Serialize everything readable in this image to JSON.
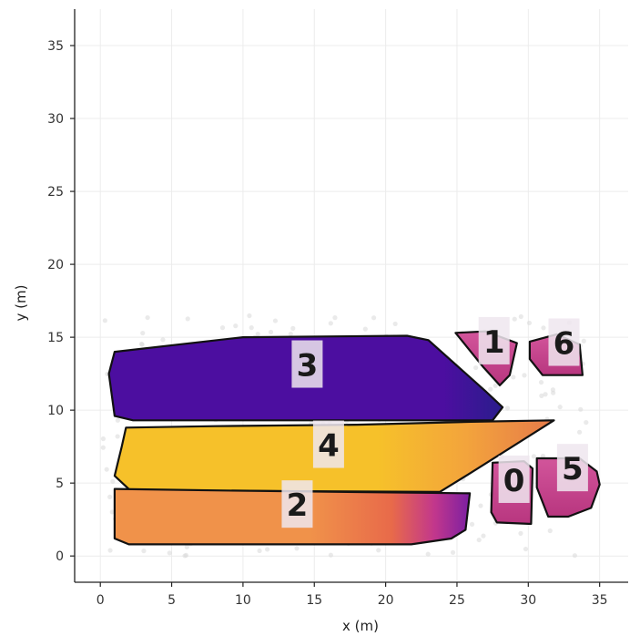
{
  "chart_data": {
    "type": "scatter",
    "title": "",
    "xlabel": "x (m)",
    "ylabel": "y (m)",
    "xlim": [
      -1.8,
      37
    ],
    "ylim": [
      -1.8,
      37.5
    ],
    "xticks": [
      0,
      5,
      10,
      15,
      20,
      25,
      30,
      35
    ],
    "yticks": [
      0,
      5,
      10,
      15,
      20,
      25,
      30,
      35
    ],
    "grid": true,
    "colors": {
      "region_3": "#4c0ea0",
      "region_4": "#f6c12a",
      "region_2": "#f0924a",
      "region_1": "#c94a93",
      "region_6": "#c94a93",
      "region_0": "#c94a93",
      "region_5": "#c94a93",
      "label_box": "#efe6ef",
      "outline": "#111111",
      "gradient_purple": "#7b1fa2",
      "gradient_magenta": "#c2378c",
      "gradient_orange": "#e86a4a"
    },
    "regions": [
      {
        "id": "3",
        "label_pos": [
          14.5,
          13.1
        ],
        "polygon": [
          [
            1,
            14
          ],
          [
            10,
            15
          ],
          [
            21.5,
            15.1
          ],
          [
            23,
            14.8
          ],
          [
            27,
            11.3
          ],
          [
            28.2,
            10.2
          ],
          [
            27.5,
            9.3
          ],
          [
            2.3,
            9.3
          ],
          [
            1,
            9.6
          ],
          [
            0.6,
            12.5
          ]
        ]
      },
      {
        "id": "4",
        "label_pos": [
          16,
          7.6
        ],
        "polygon": [
          [
            1.8,
            8.8
          ],
          [
            8,
            8.9
          ],
          [
            18,
            9
          ],
          [
            26,
            9.2
          ],
          [
            31.8,
            9.3
          ],
          [
            25.8,
            5.6
          ],
          [
            23.8,
            4.4
          ],
          [
            2.1,
            4.5
          ],
          [
            1,
            5.5
          ],
          [
            1.5,
            7.5
          ]
        ]
      },
      {
        "id": "2",
        "label_pos": [
          13.8,
          3.5
        ],
        "polygon": [
          [
            1,
            4.6
          ],
          [
            8,
            4.5
          ],
          [
            25.9,
            4.3
          ],
          [
            25.6,
            1.8
          ],
          [
            24.6,
            1.2
          ],
          [
            21.8,
            0.8
          ],
          [
            2,
            0.8
          ],
          [
            1,
            1.2
          ]
        ]
      },
      {
        "id": "1",
        "label_pos": [
          27.6,
          14.7
        ],
        "polygon": [
          [
            24.9,
            15.3
          ],
          [
            27,
            15.4
          ],
          [
            29.2,
            14.6
          ],
          [
            28.7,
            12.4
          ],
          [
            28,
            11.7
          ],
          [
            26.8,
            13
          ]
        ]
      },
      {
        "id": "6",
        "label_pos": [
          32.5,
          14.6
        ],
        "polygon": [
          [
            30.1,
            14.7
          ],
          [
            32,
            15.2
          ],
          [
            33.6,
            14.5
          ],
          [
            33.8,
            12.4
          ],
          [
            31,
            12.4
          ],
          [
            30.1,
            13.5
          ]
        ]
      },
      {
        "id": "0",
        "label_pos": [
          29,
          5.2
        ],
        "polygon": [
          [
            27.5,
            6.4
          ],
          [
            29.7,
            6.5
          ],
          [
            30.3,
            6
          ],
          [
            30.2,
            2.2
          ],
          [
            27.8,
            2.3
          ],
          [
            27.4,
            3
          ]
        ]
      },
      {
        "id": "5",
        "label_pos": [
          33.1,
          6
        ],
        "polygon": [
          [
            30.6,
            6.7
          ],
          [
            33.6,
            6.7
          ],
          [
            34.8,
            5.8
          ],
          [
            35,
            4.9
          ],
          [
            34.4,
            3.3
          ],
          [
            32.8,
            2.7
          ],
          [
            31.4,
            2.7
          ],
          [
            30.6,
            4.7
          ]
        ]
      }
    ]
  }
}
